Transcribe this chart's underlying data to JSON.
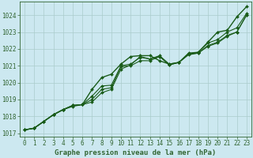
{
  "title": "Graphe pression niveau de la mer (hPa)",
  "xlim": [
    -0.5,
    23.5
  ],
  "ylim": [
    1016.8,
    1024.8
  ],
  "yticks": [
    1017,
    1018,
    1019,
    1020,
    1021,
    1022,
    1023,
    1024
  ],
  "xticks": [
    0,
    1,
    2,
    3,
    4,
    5,
    6,
    7,
    8,
    9,
    10,
    11,
    12,
    13,
    14,
    15,
    16,
    17,
    18,
    19,
    20,
    21,
    22,
    23
  ],
  "bg_color": "#cce8f0",
  "grid_color": "#aacccc",
  "line_color": "#1a5c1a",
  "series": [
    [
      1017.2,
      1017.3,
      1017.7,
      1018.1,
      1018.4,
      1018.6,
      1018.7,
      1019.6,
      1020.3,
      1020.5,
      1021.1,
      1021.55,
      1021.6,
      1021.6,
      1021.3,
      1021.1,
      1021.2,
      1021.75,
      1021.8,
      1022.4,
      1023.0,
      1023.1,
      1023.9,
      1024.5
    ],
    [
      1017.2,
      1017.3,
      1017.7,
      1018.1,
      1018.4,
      1018.65,
      1018.7,
      1019.2,
      1019.8,
      1019.85,
      1021.0,
      1021.1,
      1021.5,
      1021.4,
      1021.55,
      1021.05,
      1021.2,
      1021.7,
      1021.75,
      1022.2,
      1022.4,
      1022.8,
      1023.0,
      1024.0
    ],
    [
      1017.2,
      1017.3,
      1017.7,
      1018.1,
      1018.4,
      1018.65,
      1018.7,
      1019.0,
      1019.6,
      1019.7,
      1020.95,
      1021.0,
      1021.3,
      1021.3,
      1021.55,
      1021.05,
      1021.2,
      1021.65,
      1021.75,
      1022.15,
      1022.35,
      1022.75,
      1023.0,
      1024.0
    ],
    [
      1017.2,
      1017.3,
      1017.7,
      1018.1,
      1018.4,
      1018.65,
      1018.7,
      1018.85,
      1019.4,
      1019.6,
      1020.8,
      1021.05,
      1021.55,
      1021.4,
      1021.6,
      1021.1,
      1021.2,
      1021.7,
      1021.8,
      1022.35,
      1022.55,
      1023.0,
      1023.25,
      1024.1
    ]
  ],
  "marker": "D",
  "markersize": 2.0,
  "tick_fontsize": 5.5,
  "label_fontsize": 6.5,
  "spine_color": "#336633"
}
